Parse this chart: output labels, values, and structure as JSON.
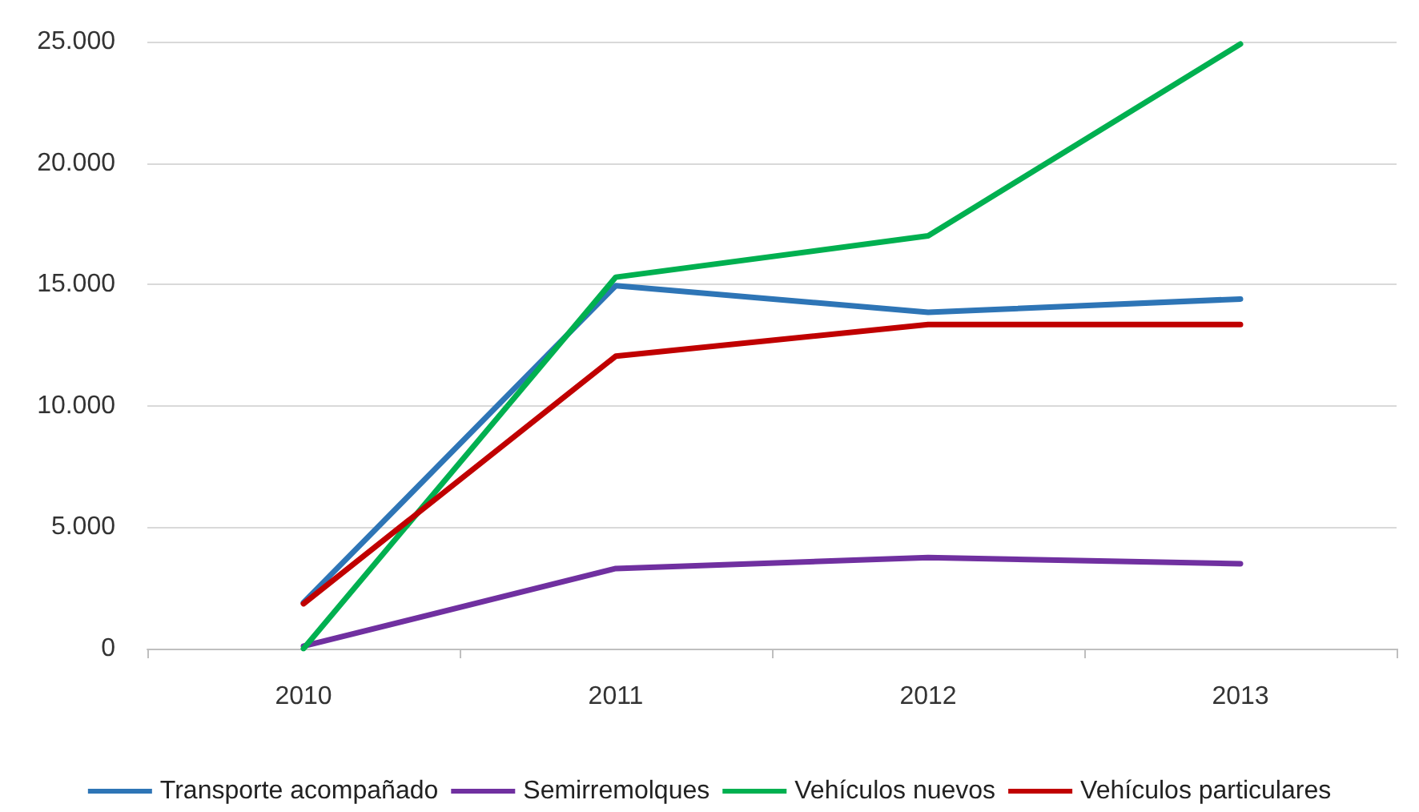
{
  "chart_data": {
    "type": "line",
    "categories": [
      "2010",
      "2011",
      "2012",
      "2013"
    ],
    "series": [
      {
        "name": "Transporte acompañado",
        "color": "#2e75b6",
        "values": [
          1900,
          14950,
          13850,
          14400
        ]
      },
      {
        "name": "Semirremolques",
        "color": "#7030a0",
        "values": [
          100,
          3300,
          3750,
          3500
        ]
      },
      {
        "name": "Vehículos nuevos",
        "color": "#00b050",
        "values": [
          0,
          15300,
          17000,
          24900
        ]
      },
      {
        "name": "Vehículos particulares",
        "color": "#c00000",
        "values": [
          1850,
          12050,
          13350,
          13350
        ]
      }
    ],
    "ylim": [
      0,
      25000
    ],
    "yticks": [
      {
        "value": 0,
        "label": "0"
      },
      {
        "value": 5000,
        "label": "5.000"
      },
      {
        "value": 10000,
        "label": "10.000"
      },
      {
        "value": 15000,
        "label": "15.000"
      },
      {
        "value": 20000,
        "label": "20.000"
      },
      {
        "value": 25000,
        "label": "25.000"
      }
    ],
    "grid": "y",
    "legend": "bottom",
    "marker": "none",
    "line_style": "solid"
  }
}
